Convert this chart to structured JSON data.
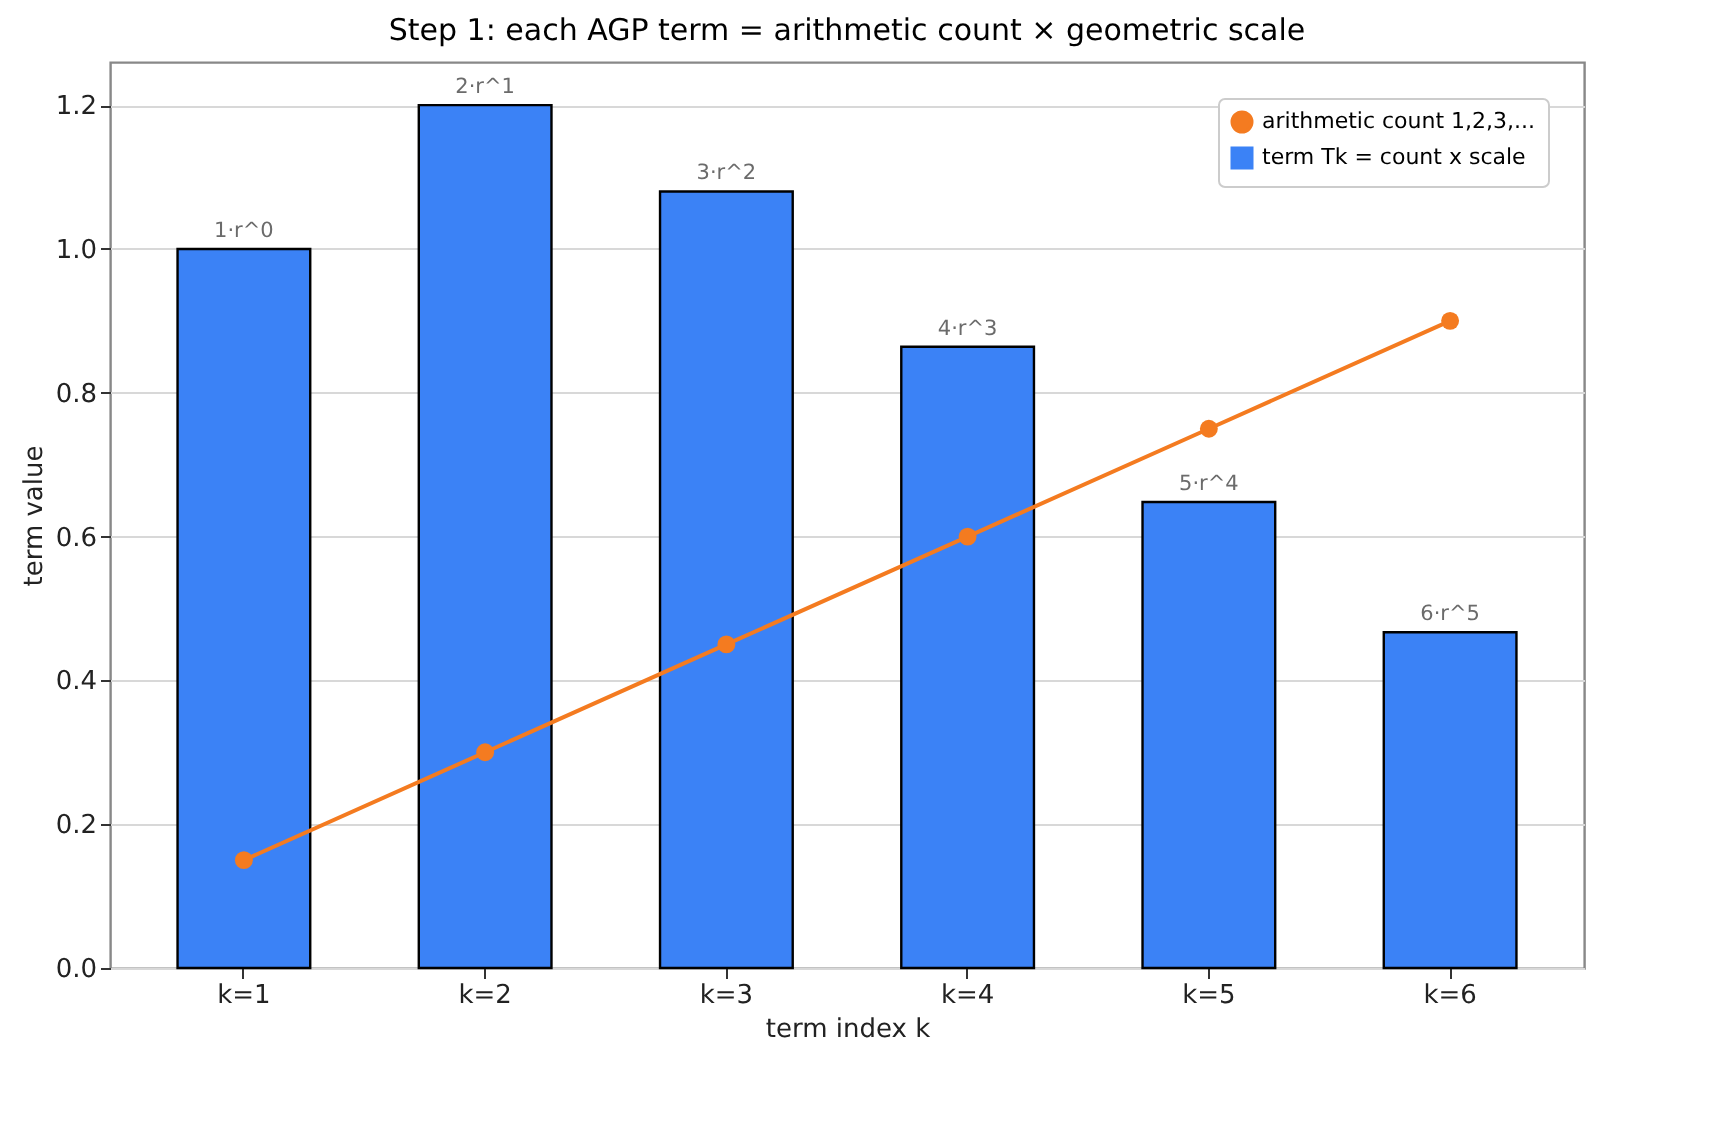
{
  "chart_data": {
    "type": "bar",
    "title": "Step 1: each AGP term = arithmetic count × geometric scale",
    "xlabel": "term index k",
    "ylabel": "term value",
    "categories": [
      "k=1",
      "k=2",
      "k=3",
      "k=4",
      "k=5",
      "k=6"
    ],
    "series": [
      {
        "type": "line",
        "name": "arithmetic count 1,2,3,...",
        "color": "#f47b20",
        "values": [
          0.15,
          0.3,
          0.45,
          0.6,
          0.75,
          0.9
        ]
      },
      {
        "name": "term Tk = count x scale",
        "color": "#3b82f6",
        "values": [
          1.0,
          1.2,
          1.08,
          0.864,
          0.648,
          0.467
        ]
      }
    ],
    "annotations": [
      {
        "text": "1·r^0",
        "x": "k=1",
        "y": 1.0
      },
      {
        "text": "2·r^1",
        "x": "k=2",
        "y": 1.2
      },
      {
        "text": "3·r^2",
        "x": "k=3",
        "y": 1.08
      },
      {
        "text": "4·r^3",
        "x": "k=4",
        "y": 0.864
      },
      {
        "text": "5·r^4",
        "x": "k=5",
        "y": 0.648
      },
      {
        "text": "6·r^5",
        "x": "k=6",
        "y": 0.467
      }
    ],
    "ylim": [
      0,
      1.26
    ],
    "yticks": [
      {
        "value": 0,
        "label": "0.0"
      },
      0.2,
      0.4,
      0.6,
      0.8,
      {
        "value": 1,
        "label": "1.0"
      },
      1.2
    ],
    "grid": "y",
    "legend": "top right",
    "marker": "circle",
    "line_style": "solid"
  }
}
